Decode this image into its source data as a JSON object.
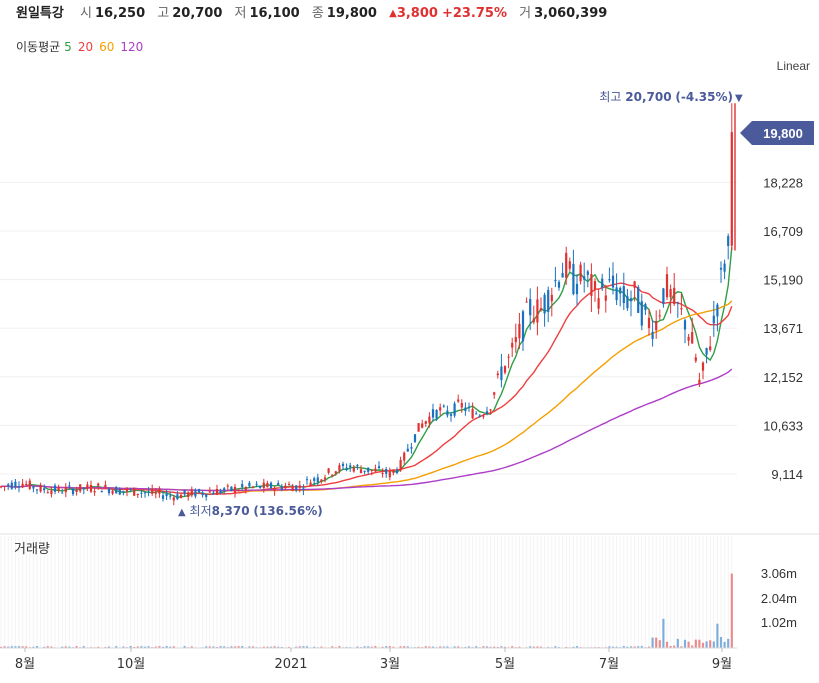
{
  "header": {
    "stock_name": "원일특강",
    "open_label": "시",
    "open": "16,250",
    "high_label": "고",
    "high": "20,700",
    "low_label": "저",
    "low": "16,100",
    "close_label": "종",
    "close": "19,800",
    "change_arrow": "▲",
    "change": "3,800",
    "change_pct": "+23.75%",
    "volume_label": "거",
    "volume": "3,060,399"
  },
  "ma_legend": {
    "title": "이동평균",
    "items": [
      {
        "label": "5",
        "color": "#2f9e44"
      },
      {
        "label": "20",
        "color": "#f03e3e"
      },
      {
        "label": "60",
        "color": "#f59f00"
      },
      {
        "label": "120",
        "color": "#ae3ec9"
      }
    ]
  },
  "chart_data": {
    "type": "candlestick",
    "scale_label": "Linear",
    "price_ticks": [
      "9,114",
      "10,633",
      "12,152",
      "13,671",
      "15,190",
      "16,709",
      "18,228"
    ],
    "current_price": "19,800",
    "max_annotation": {
      "label": "최고",
      "value": "20,700",
      "pct": "(-4.35%)",
      "arrow": "▼"
    },
    "min_annotation": {
      "label": "최저",
      "value": "8,370",
      "pct": "(136.56%)",
      "arrow": "▲"
    },
    "volume_title": "거래량",
    "volume_ticks": [
      "1.02m",
      "2.04m",
      "3.06m"
    ],
    "x_ticks": [
      "8월",
      "10월",
      "2021",
      "3월",
      "5월",
      "7월",
      "9월"
    ],
    "colors": {
      "up": "#e03131",
      "down": "#1971c2",
      "ma5": "#2f9e44",
      "ma20": "#f03e3e",
      "ma60": "#f59f00",
      "ma120": "#ae3ec9",
      "price_tag": "#4a5a9a"
    },
    "price_path_keypoints": [
      [
        0,
        8700
      ],
      [
        20,
        8850
      ],
      [
        40,
        8650
      ],
      [
        60,
        8600
      ],
      [
        80,
        8650
      ],
      [
        100,
        8700
      ],
      [
        120,
        8600
      ],
      [
        140,
        8550
      ],
      [
        160,
        8480
      ],
      [
        175,
        8420
      ],
      [
        190,
        8500
      ],
      [
        210,
        8550
      ],
      [
        230,
        8620
      ],
      [
        250,
        8700
      ],
      [
        270,
        8720
      ],
      [
        290,
        8750
      ],
      [
        300,
        8700
      ],
      [
        310,
        8900
      ],
      [
        320,
        9000
      ],
      [
        335,
        9250
      ],
      [
        350,
        9350
      ],
      [
        365,
        9250
      ],
      [
        380,
        9200
      ],
      [
        390,
        9120
      ],
      [
        400,
        9350
      ],
      [
        410,
        10000
      ],
      [
        420,
        10600
      ],
      [
        430,
        10900
      ],
      [
        440,
        11100
      ],
      [
        450,
        11000
      ],
      [
        460,
        11300
      ],
      [
        470,
        11050
      ],
      [
        480,
        11000
      ],
      [
        490,
        11200
      ],
      [
        500,
        12300
      ],
      [
        510,
        12700
      ],
      [
        520,
        13500
      ],
      [
        530,
        14300
      ],
      [
        540,
        14200
      ],
      [
        550,
        14800
      ],
      [
        560,
        15400
      ],
      [
        565,
        15600
      ],
      [
        575,
        15100
      ],
      [
        585,
        15300
      ],
      [
        595,
        14700
      ],
      [
        605,
        14900
      ],
      [
        615,
        14950
      ],
      [
        625,
        14500
      ],
      [
        635,
        14700
      ],
      [
        645,
        14000
      ],
      [
        655,
        13700
      ],
      [
        665,
        15000
      ],
      [
        675,
        14400
      ],
      [
        685,
        13900
      ],
      [
        695,
        12900
      ],
      [
        700,
        11800
      ],
      [
        705,
        12500
      ],
      [
        710,
        13300
      ],
      [
        715,
        14000
      ],
      [
        720,
        15000
      ],
      [
        725,
        15800
      ],
      [
        730,
        16300
      ],
      [
        735,
        19800
      ]
    ]
  }
}
